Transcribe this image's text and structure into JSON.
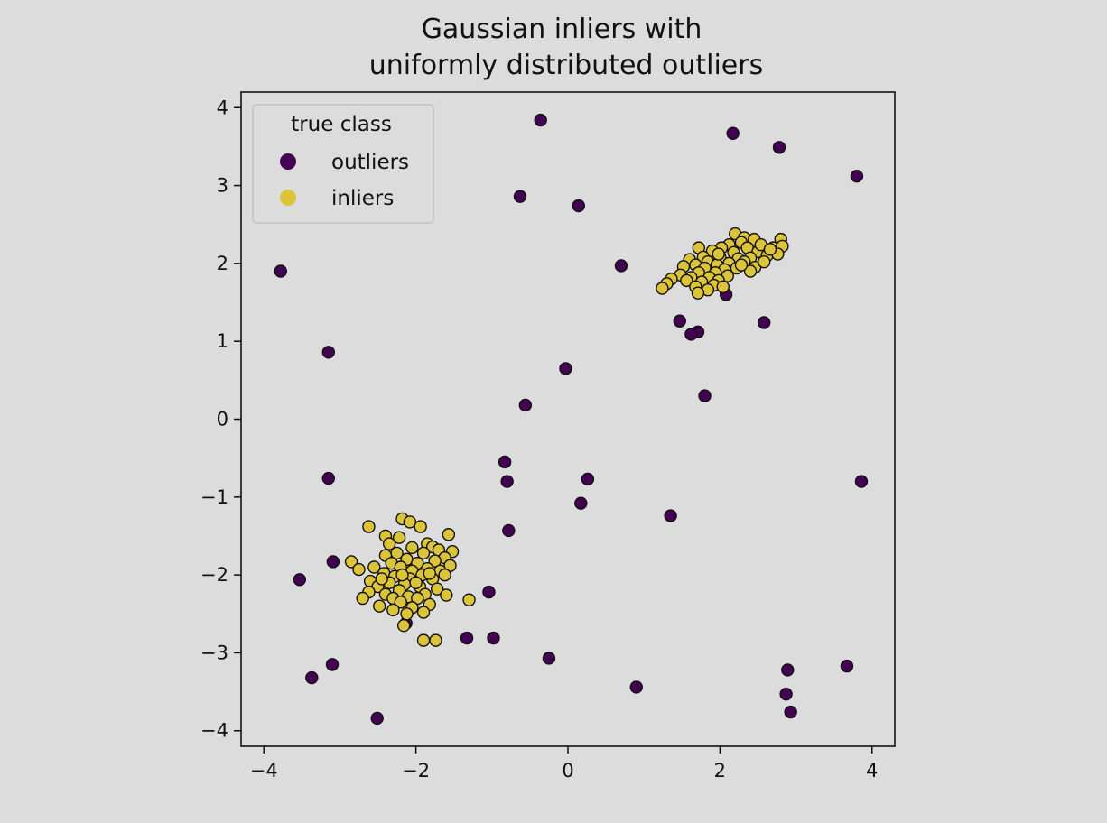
{
  "chart_data": {
    "type": "scatter",
    "title": "Gaussian inliers with\nuniformly distributed outliers",
    "title_lines": [
      "Gaussian inliers with",
      "uniformly distributed outliers"
    ],
    "xlim": [
      -4.3,
      4.3
    ],
    "ylim": [
      -4.2,
      4.2
    ],
    "xticks": [
      -4,
      -2,
      0,
      2,
      4
    ],
    "yticks": [
      -4,
      -3,
      -2,
      -1,
      0,
      1,
      2,
      3,
      4
    ],
    "xtick_labels": [
      "−4",
      "−2",
      "0",
      "2",
      "4"
    ],
    "ytick_labels": [
      "−4",
      "−3",
      "−2",
      "−1",
      "0",
      "1",
      "2",
      "3",
      "4"
    ],
    "grid": false,
    "legend": {
      "title": "true class",
      "placement": "top-left"
    },
    "series": [
      {
        "name": "outliers",
        "color": "#440154",
        "points": [
          [
            -0.36,
            3.84
          ],
          [
            2.17,
            3.67
          ],
          [
            2.78,
            3.49
          ],
          [
            3.8,
            3.12
          ],
          [
            -0.63,
            2.86
          ],
          [
            0.14,
            2.74
          ],
          [
            0.7,
            1.97
          ],
          [
            -3.78,
            1.9
          ],
          [
            2.08,
            1.6
          ],
          [
            2.58,
            1.24
          ],
          [
            1.47,
            1.26
          ],
          [
            1.71,
            1.12
          ],
          [
            1.62,
            1.09
          ],
          [
            -3.15,
            0.86
          ],
          [
            -0.03,
            0.65
          ],
          [
            1.8,
            0.3
          ],
          [
            -0.56,
            0.18
          ],
          [
            -0.83,
            -0.55
          ],
          [
            -0.8,
            -0.8
          ],
          [
            0.26,
            -0.77
          ],
          [
            -3.15,
            -0.76
          ],
          [
            3.86,
            -0.8
          ],
          [
            0.17,
            -1.08
          ],
          [
            1.35,
            -1.24
          ],
          [
            -0.78,
            -1.43
          ],
          [
            -3.09,
            -1.83
          ],
          [
            -3.53,
            -2.06
          ],
          [
            -1.04,
            -2.22
          ],
          [
            -2.13,
            -2.62
          ],
          [
            -1.33,
            -2.81
          ],
          [
            -0.98,
            -2.81
          ],
          [
            -0.25,
            -3.07
          ],
          [
            -3.1,
            -3.15
          ],
          [
            -3.37,
            -3.32
          ],
          [
            2.89,
            -3.22
          ],
          [
            3.67,
            -3.17
          ],
          [
            0.9,
            -3.44
          ],
          [
            2.87,
            -3.53
          ],
          [
            2.93,
            -3.76
          ],
          [
            -2.51,
            -3.84
          ]
        ]
      },
      {
        "name": "inliers",
        "color": "#dcc43a",
        "points": [
          [
            2.2,
            2.38
          ],
          [
            2.32,
            2.33
          ],
          [
            2.45,
            2.31
          ],
          [
            2.8,
            2.31
          ],
          [
            2.28,
            2.27
          ],
          [
            2.12,
            2.24
          ],
          [
            1.72,
            2.2
          ],
          [
            2.02,
            2.2
          ],
          [
            2.36,
            2.2
          ],
          [
            2.7,
            2.2
          ],
          [
            2.82,
            2.22
          ],
          [
            1.9,
            2.16
          ],
          [
            2.18,
            2.14
          ],
          [
            2.5,
            2.15
          ],
          [
            2.62,
            2.1
          ],
          [
            2.76,
            2.12
          ],
          [
            1.78,
            2.08
          ],
          [
            2.0,
            2.08
          ],
          [
            2.24,
            2.06
          ],
          [
            2.4,
            2.07
          ],
          [
            1.6,
            2.05
          ],
          [
            1.84,
            2.02
          ],
          [
            2.12,
            2.0
          ],
          [
            2.32,
            2.02
          ],
          [
            1.68,
            1.98
          ],
          [
            1.96,
            1.98
          ],
          [
            2.46,
            1.95
          ],
          [
            1.52,
            1.96
          ],
          [
            1.8,
            1.94
          ],
          [
            2.06,
            1.92
          ],
          [
            2.22,
            1.94
          ],
          [
            1.72,
            1.88
          ],
          [
            1.94,
            1.88
          ],
          [
            2.4,
            1.9
          ],
          [
            1.48,
            1.85
          ],
          [
            1.62,
            1.82
          ],
          [
            1.86,
            1.82
          ],
          [
            2.1,
            1.84
          ],
          [
            1.56,
            1.78
          ],
          [
            1.76,
            1.76
          ],
          [
            1.98,
            1.78
          ],
          [
            1.36,
            1.8
          ],
          [
            1.3,
            1.74
          ],
          [
            1.68,
            1.7
          ],
          [
            1.92,
            1.72
          ],
          [
            1.24,
            1.68
          ],
          [
            1.84,
            1.66
          ],
          [
            1.71,
            1.62
          ],
          [
            2.04,
            1.7
          ],
          [
            2.54,
            2.24
          ],
          [
            2.66,
            2.18
          ],
          [
            1.98,
            2.12
          ],
          [
            2.58,
            2.02
          ],
          [
            2.28,
            1.98
          ],
          [
            -2.18,
            -1.28
          ],
          [
            -2.08,
            -1.32
          ],
          [
            -1.94,
            -1.38
          ],
          [
            -2.62,
            -1.38
          ],
          [
            -1.57,
            -1.48
          ],
          [
            -2.4,
            -1.5
          ],
          [
            -2.22,
            -1.52
          ],
          [
            -1.85,
            -1.6
          ],
          [
            -2.35,
            -1.6
          ],
          [
            -1.78,
            -1.64
          ],
          [
            -2.05,
            -1.65
          ],
          [
            -1.7,
            -1.68
          ],
          [
            -1.52,
            -1.7
          ],
          [
            -2.25,
            -1.72
          ],
          [
            -1.9,
            -1.72
          ],
          [
            -2.4,
            -1.75
          ],
          [
            -1.62,
            -1.78
          ],
          [
            -2.12,
            -1.8
          ],
          [
            -1.75,
            -1.82
          ],
          [
            -2.85,
            -1.83
          ],
          [
            -2.32,
            -1.85
          ],
          [
            -1.98,
            -1.85
          ],
          [
            -1.55,
            -1.88
          ],
          [
            -2.55,
            -1.9
          ],
          [
            -2.2,
            -1.9
          ],
          [
            -1.85,
            -1.92
          ],
          [
            -2.75,
            -1.93
          ],
          [
            -2.05,
            -1.95
          ],
          [
            -1.68,
            -1.95
          ],
          [
            -2.42,
            -1.98
          ],
          [
            -1.92,
            -2.0
          ],
          [
            -2.28,
            -2.02
          ],
          [
            -2.08,
            -2.05
          ],
          [
            -1.78,
            -2.05
          ],
          [
            -2.6,
            -2.08
          ],
          [
            -2.35,
            -2.1
          ],
          [
            -2.15,
            -2.12
          ],
          [
            -1.95,
            -2.15
          ],
          [
            -2.5,
            -2.15
          ],
          [
            -1.72,
            -2.18
          ],
          [
            -2.22,
            -2.2
          ],
          [
            -2.62,
            -2.22
          ],
          [
            -1.88,
            -2.25
          ],
          [
            -2.4,
            -2.25
          ],
          [
            -1.6,
            -2.26
          ],
          [
            -2.1,
            -2.28
          ],
          [
            -2.3,
            -2.3
          ],
          [
            -1.98,
            -2.3
          ],
          [
            -2.7,
            -2.3
          ],
          [
            -1.3,
            -2.32
          ],
          [
            -2.2,
            -2.35
          ],
          [
            -1.82,
            -2.38
          ],
          [
            -2.48,
            -2.4
          ],
          [
            -2.05,
            -2.42
          ],
          [
            -2.3,
            -2.45
          ],
          [
            -1.9,
            -2.48
          ],
          [
            -2.12,
            -2.5
          ],
          [
            -2.16,
            -2.65
          ],
          [
            -1.9,
            -2.84
          ],
          [
            -1.74,
            -2.84
          ],
          [
            -2.0,
            -2.1
          ],
          [
            -1.82,
            -1.98
          ],
          [
            -2.18,
            -2.0
          ],
          [
            -2.45,
            -2.05
          ],
          [
            -1.62,
            -2.0
          ]
        ]
      }
    ]
  }
}
